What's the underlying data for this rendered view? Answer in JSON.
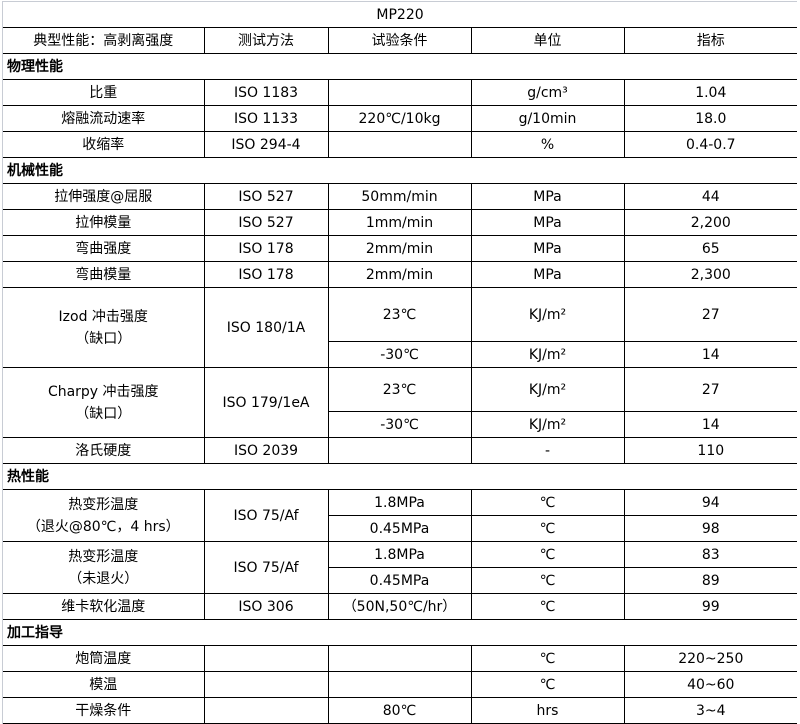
{
  "title": "MP220",
  "headers": [
    "典型性能：高剥离强度",
    "测试方法",
    "试验条件",
    "单位",
    "指标"
  ],
  "sections": [
    {
      "name": "物理性能",
      "rows": [
        {
          "name": "比重",
          "method": "ISO 1183",
          "sub": [
            {
              "cond": "",
              "unit": "g/cm³",
              "value": "1.04"
            }
          ]
        },
        {
          "name": "熔融流动速率",
          "method": "ISO 1133",
          "sub": [
            {
              "cond": "220℃/10kg",
              "unit": "g/10min",
              "value": "18.0"
            }
          ]
        },
        {
          "name": "收缩率",
          "method": "ISO 294-4",
          "sub": [
            {
              "cond": "",
              "unit": "%",
              "value": "0.4-0.7"
            }
          ]
        }
      ]
    },
    {
      "name": "机械性能",
      "rows": [
        {
          "name": "拉伸强度@屈服",
          "method": "ISO 527",
          "sub": [
            {
              "cond": "50mm/min",
              "unit": "MPa",
              "value": "44"
            }
          ]
        },
        {
          "name": "拉伸模量",
          "method": "ISO 527",
          "sub": [
            {
              "cond": "1mm/min",
              "unit": "MPa",
              "value": "2,200"
            }
          ]
        },
        {
          "name": "弯曲强度",
          "method": "ISO 178",
          "sub": [
            {
              "cond": "2mm/min",
              "unit": "MPa",
              "value": "65"
            }
          ]
        },
        {
          "name": "弯曲模量",
          "method": "ISO 178",
          "sub": [
            {
              "cond": "2mm/min",
              "unit": "MPa",
              "value": "2,300"
            }
          ]
        },
        {
          "name": "Izod 冲击强度\n（缺口）",
          "method": "ISO 180/1A",
          "sub": [
            {
              "cond": "23℃",
              "unit": "KJ/m²",
              "value": "27"
            },
            {
              "cond": "-30℃",
              "unit": "KJ/m²",
              "value": "14"
            }
          ]
        },
        {
          "name": "Charpy 冲击强度\n（缺口）",
          "method": "ISO 179/1eA",
          "sub": [
            {
              "cond": "23℃",
              "unit": "KJ/m²",
              "value": "27"
            },
            {
              "cond": "-30℃",
              "unit": "KJ/m²",
              "value": "14"
            }
          ]
        },
        {
          "name": "洛氏硬度",
          "method": "ISO 2039",
          "sub": [
            {
              "cond": "",
              "unit": "-",
              "value": "110"
            }
          ]
        }
      ]
    },
    {
      "name": "热性能",
      "rows": [
        {
          "name": "热变形温度\n（退火@80℃，4 hrs）",
          "method": "ISO 75/Af",
          "sub": [
            {
              "cond": "1.8MPa",
              "unit": "℃",
              "value": "94"
            },
            {
              "cond": "0.45MPa",
              "unit": "℃",
              "value": "98"
            }
          ]
        },
        {
          "name": "热变形温度\n（未退火）",
          "method": "ISO 75/Af",
          "sub": [
            {
              "cond": "1.8MPa",
              "unit": "℃",
              "value": "83"
            },
            {
              "cond": "0.45MPa",
              "unit": "℃",
              "value": "89"
            }
          ]
        },
        {
          "name": "维卡软化温度",
          "method": "ISO 306",
          "sub": [
            {
              "cond": "（50N,50℃/hr）",
              "unit": "℃",
              "value": "99"
            }
          ]
        }
      ]
    },
    {
      "name": "加工指导",
      "rows": [
        {
          "name": "炮筒温度",
          "method": "",
          "sub": [
            {
              "cond": "",
              "unit": "℃",
              "value": "220~250"
            }
          ]
        },
        {
          "name": "模温",
          "method": "",
          "sub": [
            {
              "cond": "",
              "unit": "℃",
              "value": "40~60"
            }
          ]
        },
        {
          "name": "干燥条件",
          "method": "",
          "sub": [
            {
              "cond": "80℃",
              "unit": "hrs",
              "value": "3~4"
            }
          ]
        }
      ]
    }
  ]
}
